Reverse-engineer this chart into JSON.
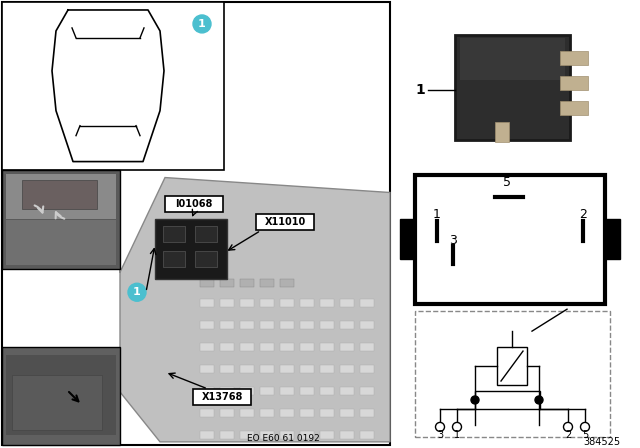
{
  "bg_color": "#ffffff",
  "teal_color": "#4bbfcf",
  "label_I01068": "I01068",
  "label_X11010": "X11010",
  "label_X13768": "X13768",
  "footer_text": "EO E60 61 0192",
  "part_number": "384525",
  "relay_label": "1",
  "term5_label": "5",
  "term1_label": "1",
  "term2_label": "2",
  "term3_label": "3",
  "sch_3": "3",
  "sch_1": "1",
  "sch_2": "2",
  "sch_5": "5"
}
